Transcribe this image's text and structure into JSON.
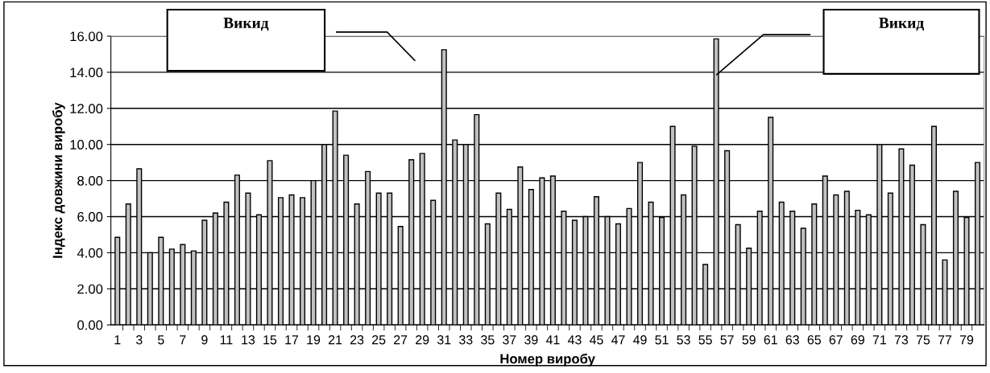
{
  "chart_data": {
    "type": "bar",
    "xlabel": "Номер виробу",
    "ylabel": "Індекс довжини виробу",
    "categories": [
      "1",
      null,
      "3",
      null,
      "5",
      null,
      "7",
      null,
      "9",
      null,
      "11",
      null,
      "13",
      null,
      "15",
      null,
      "17",
      null,
      "19",
      null,
      "21",
      null,
      "23",
      null,
      "25",
      null,
      "27",
      null,
      "29",
      null,
      "31",
      null,
      "33",
      null,
      "35",
      null,
      "37",
      null,
      "39",
      null,
      "41",
      null,
      "43",
      null,
      "45",
      null,
      "47",
      null,
      "49",
      null,
      "51",
      null,
      "53",
      null,
      "55",
      null,
      "57",
      null,
      "59",
      null,
      "61",
      null,
      "63",
      null,
      "65",
      null,
      "67",
      null,
      "69",
      null,
      "71",
      null,
      "73",
      null,
      "75",
      null,
      "77",
      null,
      "79",
      null
    ],
    "values": [
      4.85,
      6.7,
      8.65,
      4.0,
      4.85,
      4.2,
      4.45,
      4.1,
      5.8,
      6.2,
      6.8,
      8.3,
      7.3,
      6.1,
      9.1,
      7.05,
      7.2,
      7.05,
      8.0,
      10.0,
      11.85,
      9.4,
      6.7,
      8.5,
      7.3,
      7.3,
      5.45,
      9.15,
      9.5,
      6.9,
      15.25,
      10.25,
      10.0,
      11.65,
      5.6,
      7.3,
      6.4,
      8.75,
      7.5,
      8.15,
      8.25,
      6.3,
      5.8,
      6.0,
      7.1,
      6.0,
      5.6,
      6.45,
      9.0,
      6.8,
      5.95,
      11.0,
      7.2,
      9.9,
      3.35,
      15.85,
      9.65,
      5.55,
      4.25,
      6.3,
      11.5,
      6.8,
      6.3,
      5.35,
      6.7,
      8.25,
      7.2,
      7.4,
      6.35,
      6.1,
      10.0,
      7.3,
      9.75,
      8.85,
      5.55,
      11.0,
      3.6,
      7.4,
      5.95,
      9.0
    ],
    "color": "#c0c0c0",
    "ylim": [
      0,
      16
    ],
    "yticks": [
      {
        "value": 0,
        "label": "0.00"
      },
      {
        "value": 2,
        "label": "2.00"
      },
      {
        "value": 4,
        "label": "4.00"
      },
      {
        "value": 6,
        "label": "6.00"
      },
      {
        "value": 8,
        "label": "8.00"
      },
      {
        "value": 10,
        "label": "10.00"
      },
      {
        "value": 12,
        "label": "12.00"
      },
      {
        "value": 14,
        "label": "14.00"
      },
      {
        "value": 16,
        "label": "16.00"
      }
    ],
    "grid": "y",
    "annotations": [
      "Викид",
      "Викид"
    ]
  }
}
